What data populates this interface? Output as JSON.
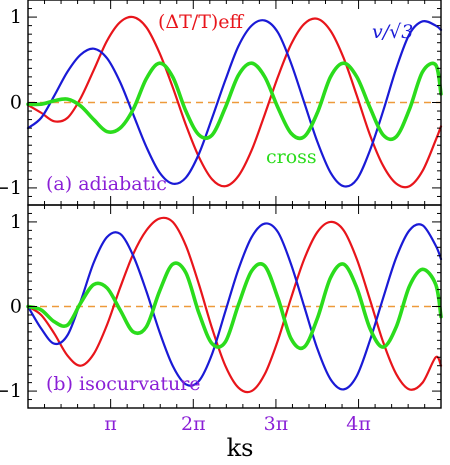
{
  "colors": {
    "temperature": "#e8151b",
    "velocity": "#1a1ad6",
    "cross": "#2bdc1c",
    "zero_line": "#ee9a3a",
    "tick_labels": "#8a1fd6",
    "annotation": "#8a1fd6"
  },
  "chart_data": [
    {
      "type": "line",
      "panel_label": "(a) adiabatic",
      "xlabel": "",
      "ylim": [
        -1.2,
        1.2
      ],
      "xlim": [
        0,
        15.7
      ],
      "yticks": [
        -1,
        0,
        1
      ],
      "ytick_labels": [
        "−1",
        "0",
        "1"
      ],
      "xticks": [
        3.1416,
        6.2832,
        9.4248,
        12.5664
      ],
      "xtick_labels": [
        "",
        "",
        "",
        ""
      ],
      "annotations": {
        "temperature": "(ΔT/T)eff",
        "velocity": "v/√3",
        "cross": "cross"
      },
      "series": [
        {
          "name": "(ΔT/T)eff",
          "color": "#e8151b",
          "x": [
            0,
            0.5,
            1,
            1.5,
            2,
            2.5,
            3,
            3.5,
            4,
            4.5,
            5,
            5.5,
            6,
            6.5,
            7,
            7.5,
            8,
            8.5,
            9,
            9.5,
            10,
            10.5,
            11,
            11.5,
            12,
            12.5,
            13,
            13.5,
            14,
            14.5,
            15,
            15.5,
            15.7
          ],
          "y": [
            -0.03,
            -0.12,
            -0.22,
            -0.18,
            0.05,
            0.38,
            0.72,
            0.94,
            1.0,
            0.88,
            0.58,
            0.18,
            -0.26,
            -0.64,
            -0.9,
            -0.98,
            -0.86,
            -0.56,
            -0.14,
            0.3,
            0.68,
            0.92,
            0.98,
            0.84,
            0.52,
            0.08,
            -0.38,
            -0.74,
            -0.95,
            -0.98,
            -0.8,
            -0.44,
            -0.28
          ]
        },
        {
          "name": "v/√3",
          "color": "#1a1ad6",
          "x": [
            0,
            0.5,
            1,
            1.5,
            2,
            2.5,
            3,
            3.5,
            4,
            4.5,
            5,
            5.5,
            6,
            6.5,
            7,
            7.5,
            8,
            8.5,
            9,
            9.5,
            10,
            10.5,
            11,
            11.5,
            12,
            12.5,
            13,
            13.5,
            14,
            14.5,
            15,
            15.5,
            15.7
          ],
          "y": [
            -0.3,
            -0.18,
            0.08,
            0.36,
            0.56,
            0.63,
            0.52,
            0.24,
            -0.14,
            -0.52,
            -0.82,
            -0.95,
            -0.88,
            -0.6,
            -0.18,
            0.26,
            0.66,
            0.9,
            0.96,
            0.82,
            0.46,
            0.0,
            -0.46,
            -0.82,
            -0.98,
            -0.9,
            -0.56,
            -0.1,
            0.4,
            0.8,
            0.95,
            0.9,
            0.85
          ]
        },
        {
          "name": "cross",
          "color": "#2bdc1c",
          "x": [
            0,
            0.5,
            1,
            1.5,
            2,
            2.5,
            3,
            3.5,
            4,
            4.5,
            5,
            5.5,
            6,
            6.5,
            7,
            7.5,
            8,
            8.5,
            9,
            9.5,
            10,
            10.5,
            11,
            11.5,
            12,
            12.5,
            13,
            13.5,
            14,
            14.5,
            15,
            15.5,
            15.7
          ],
          "y": [
            -0.02,
            -0.02,
            0.02,
            0.04,
            -0.04,
            -0.2,
            -0.34,
            -0.3,
            -0.08,
            0.28,
            0.46,
            0.3,
            -0.1,
            -0.38,
            -0.38,
            -0.06,
            0.32,
            0.46,
            0.3,
            -0.06,
            -0.36,
            -0.4,
            -0.12,
            0.3,
            0.46,
            0.3,
            -0.06,
            -0.38,
            -0.4,
            -0.08,
            0.36,
            0.44,
            0.1
          ]
        }
      ]
    },
    {
      "type": "line",
      "panel_label": "(b) isocurvature",
      "xlabel": "ks",
      "ylim": [
        -1.2,
        1.2
      ],
      "xlim": [
        0,
        15.7
      ],
      "yticks": [
        -1,
        0,
        1
      ],
      "ytick_labels": [
        "−1",
        "0",
        "1"
      ],
      "xticks": [
        3.1416,
        6.2832,
        9.4248,
        12.5664
      ],
      "xtick_labels": [
        "π",
        "2π",
        "3π",
        "4π"
      ],
      "series": [
        {
          "name": "(ΔT/T)eff",
          "color": "#e8151b",
          "x": [
            0,
            0.5,
            1,
            1.5,
            2,
            2.5,
            3,
            3.5,
            4,
            4.5,
            5,
            5.5,
            6,
            6.5,
            7,
            7.5,
            8,
            8.5,
            9,
            9.5,
            10,
            10.5,
            11,
            11.5,
            12,
            12.5,
            13,
            13.5,
            14,
            14.5,
            15,
            15.5,
            15.7
          ],
          "y": [
            0.0,
            -0.1,
            -0.32,
            -0.58,
            -0.7,
            -0.56,
            -0.22,
            0.22,
            0.62,
            0.9,
            1.04,
            1.0,
            0.72,
            0.26,
            -0.26,
            -0.7,
            -0.96,
            -1.0,
            -0.8,
            -0.4,
            0.1,
            0.56,
            0.88,
            1.0,
            0.9,
            0.56,
            0.08,
            -0.42,
            -0.8,
            -0.98,
            -0.9,
            -0.6,
            -0.7
          ]
        },
        {
          "name": "v/√3",
          "color": "#1a1ad6",
          "x": [
            0,
            0.5,
            1,
            1.5,
            2,
            2.5,
            3,
            3.5,
            4,
            4.5,
            5,
            5.5,
            6,
            6.5,
            7,
            7.5,
            8,
            8.5,
            9,
            9.5,
            10,
            10.5,
            11,
            11.5,
            12,
            12.5,
            13,
            13.5,
            14,
            14.5,
            15,
            15.5,
            15.7
          ],
          "y": [
            0.0,
            -0.26,
            -0.44,
            -0.34,
            0.06,
            0.52,
            0.82,
            0.86,
            0.6,
            0.18,
            -0.3,
            -0.7,
            -0.92,
            -0.88,
            -0.56,
            -0.06,
            0.44,
            0.82,
            0.98,
            0.88,
            0.5,
            0.0,
            -0.5,
            -0.86,
            -0.98,
            -0.82,
            -0.4,
            0.1,
            0.58,
            0.9,
            0.96,
            0.72,
            0.56
          ]
        },
        {
          "name": "cross",
          "color": "#2bdc1c",
          "x": [
            0,
            0.5,
            1,
            1.5,
            2,
            2.5,
            3,
            3.5,
            4,
            4.5,
            5,
            5.5,
            6,
            6.5,
            7,
            7.5,
            8,
            8.5,
            9,
            9.5,
            10,
            10.5,
            11,
            11.5,
            12,
            12.5,
            13,
            13.5,
            14,
            14.5,
            15,
            15.5,
            15.7
          ],
          "y": [
            0.0,
            -0.04,
            -0.18,
            -0.22,
            0.04,
            0.26,
            0.22,
            -0.04,
            -0.3,
            -0.24,
            0.18,
            0.5,
            0.4,
            -0.08,
            -0.44,
            -0.42,
            0.02,
            0.42,
            0.48,
            0.1,
            -0.38,
            -0.48,
            -0.14,
            0.34,
            0.5,
            0.22,
            -0.26,
            -0.48,
            -0.24,
            0.24,
            0.44,
            0.26,
            -0.12
          ]
        }
      ]
    }
  ]
}
